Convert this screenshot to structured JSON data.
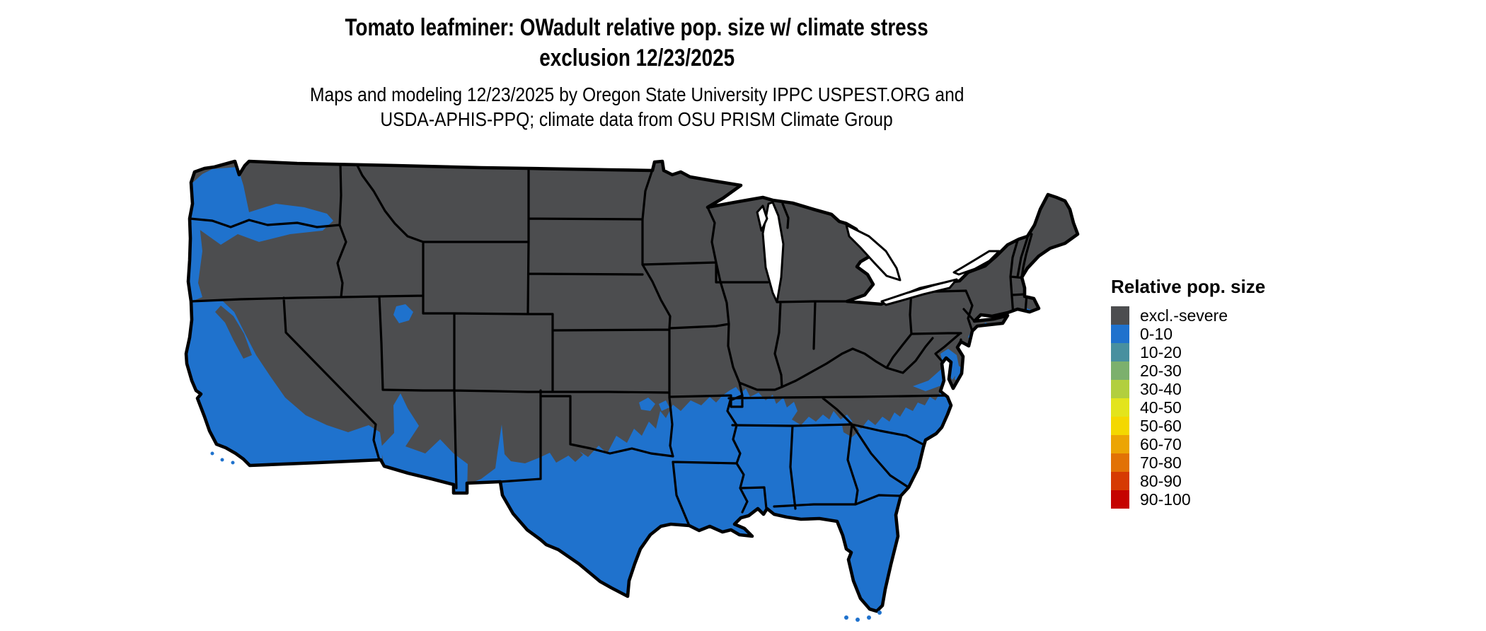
{
  "figure": {
    "title_line1": "Tomato leafminer: OWadult relative pop. size w/ climate stress",
    "title_line2": "exclusion 12/23/2025",
    "subtitle_line1": "Maps and modeling 12/23/2025 by Oregon State University IPPC USPEST.ORG and",
    "subtitle_line2": "USDA-APHIS-PPQ; climate data from OSU PRISM Climate Group"
  },
  "legend": {
    "title": "Relative pop. size",
    "items": [
      {
        "label": "excl.-severe",
        "color": "#4c4d4f"
      },
      {
        "label": "0-10",
        "color": "#1f72cd"
      },
      {
        "label": "10-20",
        "color": "#48909f"
      },
      {
        "label": "20-30",
        "color": "#7cb06d"
      },
      {
        "label": "30-40",
        "color": "#b2cf3e"
      },
      {
        "label": "40-50",
        "color": "#e3e41c"
      },
      {
        "label": "50-60",
        "color": "#f4d800"
      },
      {
        "label": "60-70",
        "color": "#eca504"
      },
      {
        "label": "70-80",
        "color": "#e27205"
      },
      {
        "label": "80-90",
        "color": "#d63a02"
      },
      {
        "label": "90-100",
        "color": "#c50300"
      }
    ]
  },
  "map": {
    "land_color": "#4c4d4f",
    "population_0_10_color": "#1f72cd",
    "border_color": "#000000",
    "water_color": "#ffffff"
  }
}
